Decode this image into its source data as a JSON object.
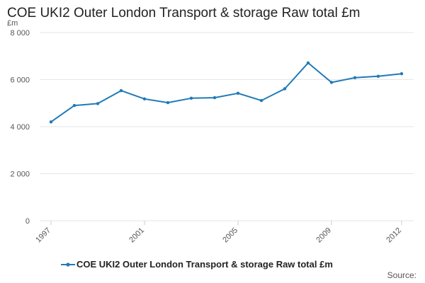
{
  "chart_data": {
    "type": "line",
    "title": "COE UKI2 Outer London Transport & storage Raw total £m",
    "ylabel": "£m",
    "xlabel": "",
    "ylim": [
      0,
      8000
    ],
    "yticks": [
      0,
      2000,
      4000,
      6000,
      8000
    ],
    "ytick_labels": [
      "0",
      "2 000",
      "4 000",
      "6 000",
      "8 000"
    ],
    "xlim": [
      1997,
      2012
    ],
    "xtick_labels": [
      "1997",
      "2001",
      "2005",
      "2009",
      "2012"
    ],
    "xticks": [
      1997,
      2001,
      2005,
      2009,
      2012
    ],
    "grid": "horizontal",
    "legend_position": "bottom",
    "series": [
      {
        "name": "COE UKI2 Outer London Transport & storage Raw total £m",
        "color": "#1f7ab8",
        "x": [
          1997,
          1998,
          1999,
          2000,
          2001,
          2002,
          2003,
          2004,
          2005,
          2006,
          2007,
          2008,
          2009,
          2010,
          2011,
          2012
        ],
        "values": [
          4200,
          4900,
          4980,
          5530,
          5180,
          5020,
          5210,
          5230,
          5420,
          5110,
          5610,
          6710,
          5880,
          6080,
          6140,
          6250
        ]
      }
    ]
  },
  "source_label": "Source:"
}
